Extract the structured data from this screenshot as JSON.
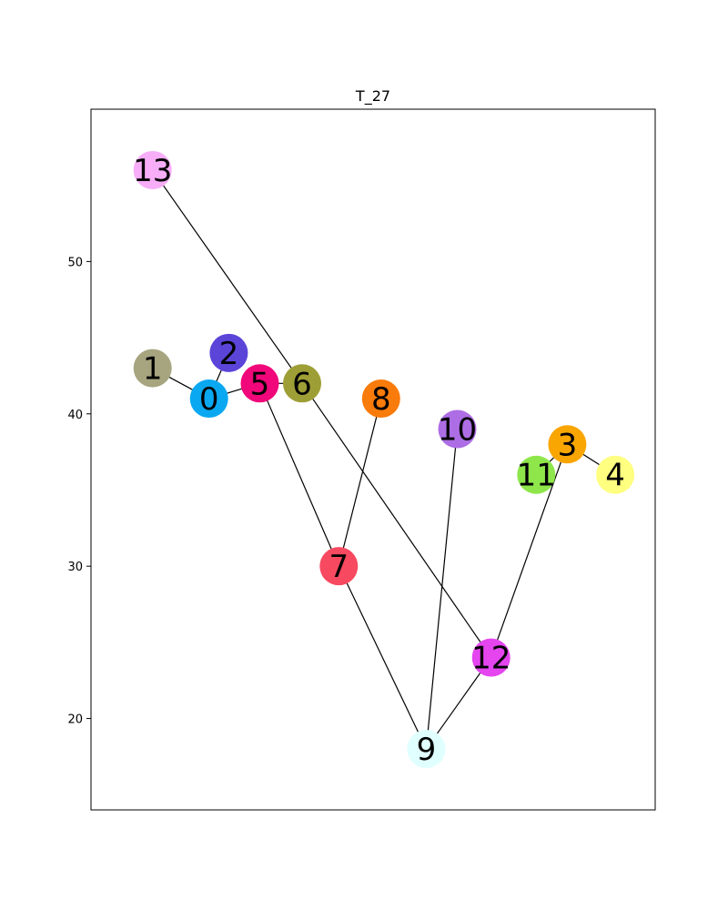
{
  "chart_data": {
    "type": "graph",
    "title": "T_27",
    "ylim": [
      14,
      60
    ],
    "yticks": [
      20,
      30,
      40,
      50
    ],
    "xrange": [
      0,
      10
    ],
    "grid": false,
    "nodes": [
      {
        "id": "0",
        "x": 1.85,
        "y": 41,
        "color": "#0ba8f2"
      },
      {
        "id": "1",
        "x": 0.85,
        "y": 43,
        "color": "#a6a57f"
      },
      {
        "id": "2",
        "x": 2.2,
        "y": 44,
        "color": "#5b44d8"
      },
      {
        "id": "3",
        "x": 8.2,
        "y": 38,
        "color": "#f9a602"
      },
      {
        "id": "4",
        "x": 9.05,
        "y": 36,
        "color": "#ffff80"
      },
      {
        "id": "5",
        "x": 2.75,
        "y": 42,
        "color": "#f0077a"
      },
      {
        "id": "6",
        "x": 3.5,
        "y": 42,
        "color": "#9e9e36"
      },
      {
        "id": "7",
        "x": 4.15,
        "y": 30,
        "color": "#f74960"
      },
      {
        "id": "8",
        "x": 4.9,
        "y": 41,
        "color": "#f97b0b"
      },
      {
        "id": "9",
        "x": 5.7,
        "y": 18,
        "color": "#e0ffff"
      },
      {
        "id": "10",
        "x": 6.25,
        "y": 39,
        "color": "#ad6ee5"
      },
      {
        "id": "11",
        "x": 7.65,
        "y": 36,
        "color": "#8ee64a"
      },
      {
        "id": "12",
        "x": 6.85,
        "y": 24,
        "color": "#e445ef"
      },
      {
        "id": "13",
        "x": 0.85,
        "y": 56,
        "color": "#f8adf8"
      }
    ],
    "edges": [
      [
        "0",
        "1"
      ],
      [
        "0",
        "2"
      ],
      [
        "0",
        "5"
      ],
      [
        "5",
        "6"
      ],
      [
        "5",
        "7"
      ],
      [
        "6",
        "13"
      ],
      [
        "6",
        "12"
      ],
      [
        "7",
        "8"
      ],
      [
        "7",
        "9"
      ],
      [
        "9",
        "10"
      ],
      [
        "9",
        "12"
      ],
      [
        "12",
        "3"
      ],
      [
        "3",
        "4"
      ],
      [
        "3",
        "11"
      ]
    ]
  }
}
